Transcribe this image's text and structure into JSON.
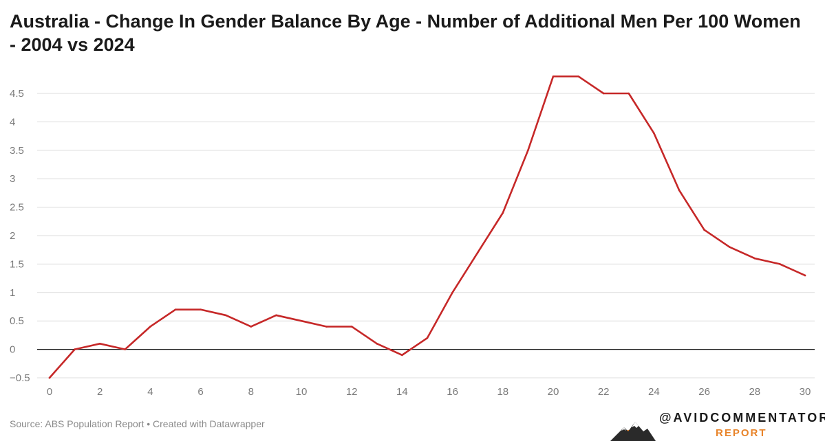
{
  "chart_data": {
    "type": "line",
    "title": "Australia - Change In Gender Balance By Age - Number of Additional Men Per 100 Women - 2004 vs 2024",
    "xlabel": "",
    "ylabel": "",
    "x": [
      0,
      1,
      2,
      3,
      4,
      5,
      6,
      7,
      8,
      9,
      10,
      11,
      12,
      13,
      14,
      15,
      16,
      17,
      18,
      19,
      20,
      21,
      22,
      23,
      24,
      25,
      26,
      27,
      28,
      29,
      30
    ],
    "series": [
      {
        "name": "Additional men per 100 women",
        "color": "#c62828",
        "values": [
          -0.5,
          0,
          0.1,
          0,
          0.4,
          0.7,
          0.7,
          0.6,
          0.4,
          0.6,
          0.5,
          0.4,
          0.4,
          0.1,
          -0.1,
          0.2,
          1.0,
          1.7,
          2.4,
          3.5,
          4.8,
          4.8,
          4.5,
          4.5,
          3.8,
          2.8,
          2.1,
          1.8,
          1.6,
          1.5,
          1.3
        ]
      }
    ],
    "xlim": [
      0,
      30
    ],
    "ylim": [
      -0.5,
      4.5
    ],
    "x_ticks": [
      0,
      2,
      4,
      6,
      8,
      10,
      12,
      14,
      16,
      18,
      20,
      22,
      24,
      26,
      28,
      30
    ],
    "y_ticks": [
      -0.5,
      0,
      0.5,
      1,
      1.5,
      2,
      2.5,
      3,
      3.5,
      4,
      4.5
    ],
    "y_tick_labels": [
      "−0.5",
      "0",
      "0.5",
      "1",
      "1.5",
      "2",
      "2.5",
      "3",
      "3.5",
      "4",
      "4.5"
    ],
    "grid": true
  },
  "footer": {
    "source": "Source: ABS Population Report • Created with Datawrapper"
  },
  "branding": {
    "handle": "@AVIDCOMMENTATOR",
    "subtitle": "REPORT",
    "accent_color": "#e8842a"
  }
}
